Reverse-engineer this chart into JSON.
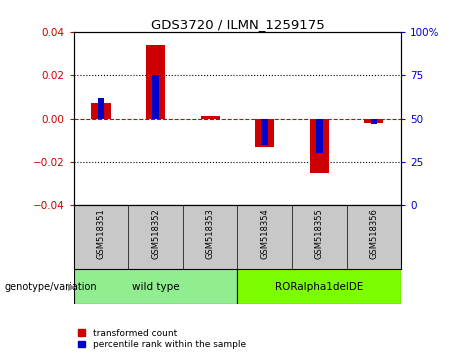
{
  "title": "GDS3720 / ILMN_1259175",
  "samples": [
    "GSM518351",
    "GSM518352",
    "GSM518353",
    "GSM518354",
    "GSM518355",
    "GSM518356"
  ],
  "red_values": [
    0.007,
    0.034,
    0.001,
    -0.013,
    -0.025,
    -0.002
  ],
  "blue_values_pct": [
    62,
    75,
    50,
    35,
    30,
    47
  ],
  "ylim_left": [
    -0.04,
    0.04
  ],
  "ylim_right": [
    0,
    100
  ],
  "yticks_left": [
    -0.04,
    -0.02,
    0.0,
    0.02,
    0.04
  ],
  "yticks_right": [
    0,
    25,
    50,
    75,
    100
  ],
  "groups": [
    {
      "label": "wild type",
      "samples": [
        0,
        1,
        2
      ],
      "color": "#90EE90"
    },
    {
      "label": "RORalpha1delDE",
      "samples": [
        3,
        4,
        5
      ],
      "color": "#7CFC00"
    }
  ],
  "red_color": "#CC0000",
  "blue_color": "#0000CC",
  "zero_line_color": "#CC0000",
  "bar_width": 0.35,
  "blue_bar_width": 0.12,
  "background_plot": "#FFFFFF",
  "background_label": "#C8C8C8",
  "legend_red": "transformed count",
  "legend_blue": "percentile rank within the sample",
  "genotype_label": "genotype/variation"
}
